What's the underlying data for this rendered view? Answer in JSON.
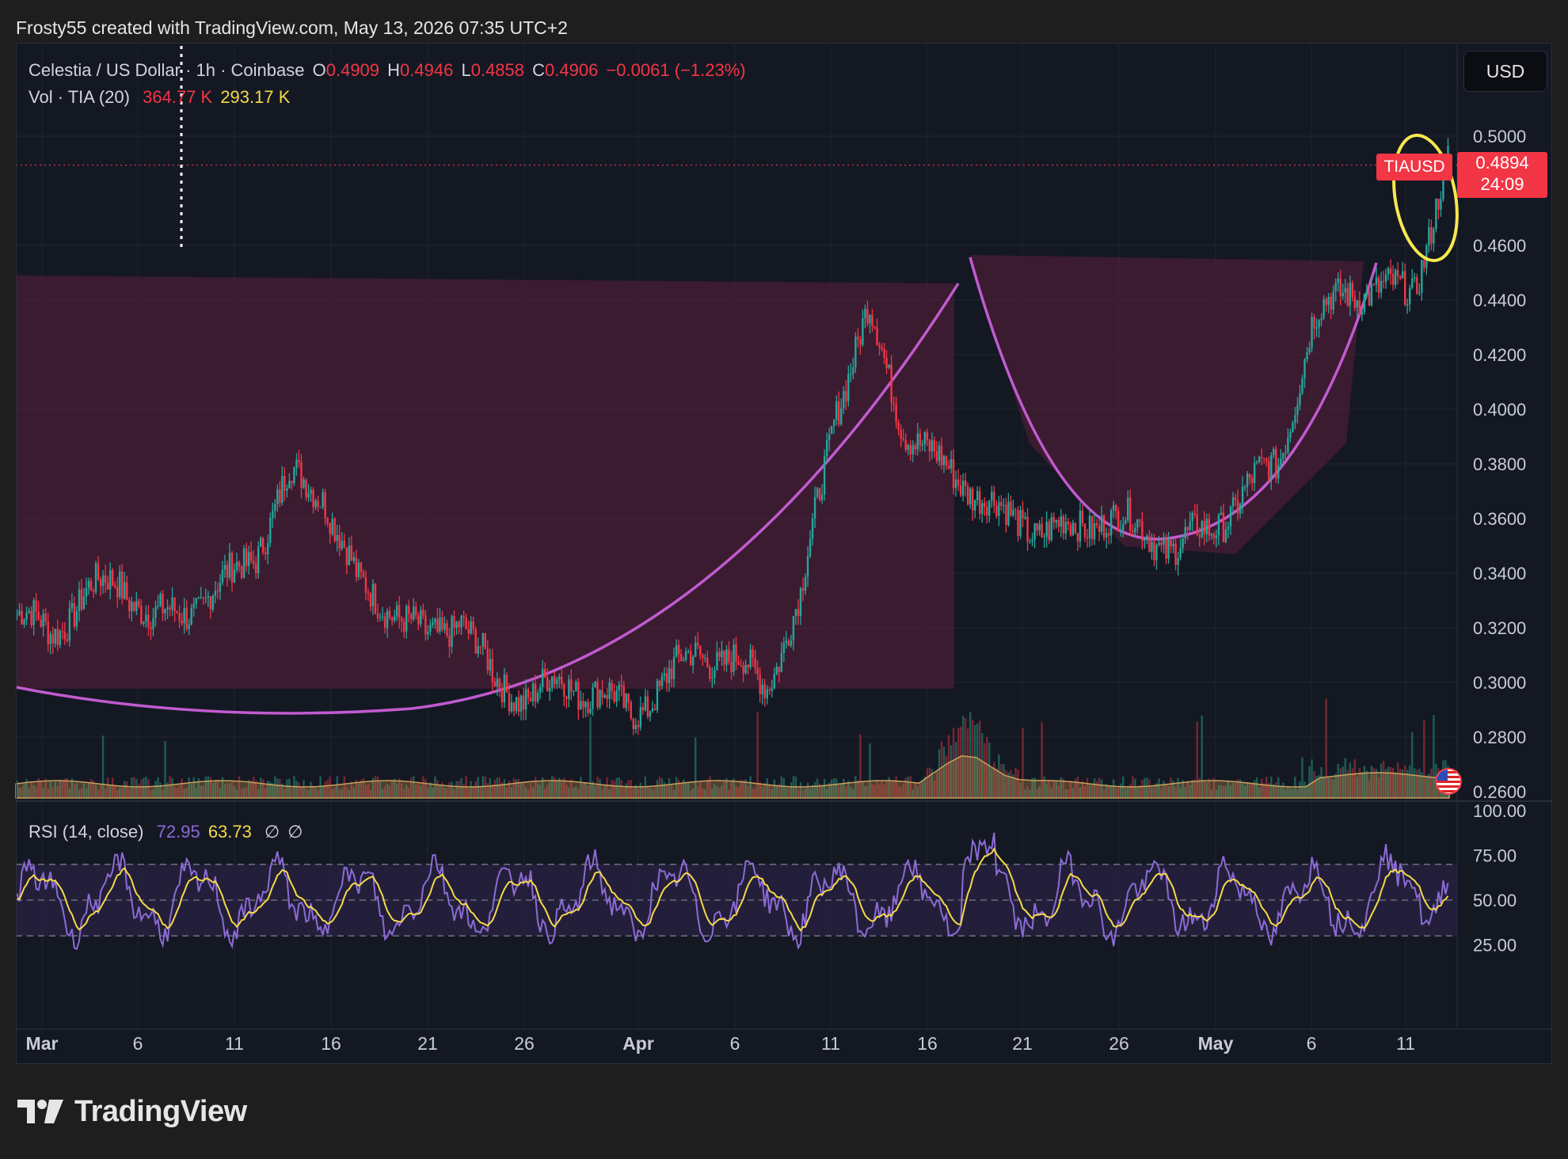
{
  "attribution": "Frosty55 created with TradingView.com, May 13, 2026 07:35 UTC+2",
  "legend": {
    "symbol": "Celestia / US Dollar · 1h · Coinbase",
    "open_label": "O",
    "open": "0.4909",
    "high_label": "H",
    "high": "0.4946",
    "low_label": "L",
    "low": "0.4858",
    "close_label": "C",
    "close": "0.4906",
    "change": "−0.0061 (−1.23%)",
    "vol_label": "Vol · TIA (20)",
    "vol_value": "364.77 K",
    "vol_ma": "293.17 K"
  },
  "rsi_legend": {
    "label": "RSI (14, close)",
    "rsi": "72.95",
    "ma": "63.73",
    "extra1": "∅",
    "extra2": "∅"
  },
  "currency_button": "USD",
  "price_tag": {
    "symbol": "TIAUSD",
    "price": "0.4894",
    "countdown": "24:09"
  },
  "price_axis": [
    "0.5000",
    "0.4600",
    "0.4400",
    "0.4200",
    "0.4000",
    "0.3800",
    "0.3600",
    "0.3400",
    "0.3200",
    "0.3000",
    "0.2800",
    "0.2600"
  ],
  "rsi_axis": [
    "100.00",
    "75.00",
    "50.00",
    "25.00"
  ],
  "time_axis": [
    "Mar",
    "6",
    "11",
    "16",
    "21",
    "26",
    "Apr",
    "6",
    "11",
    "16",
    "21",
    "26",
    "May",
    "6",
    "11"
  ],
  "brand": "TradingView",
  "colors": {
    "up": "#26a69a",
    "down": "#f23645",
    "pattern": "#c15bd0",
    "rsi": "#8c6bd6",
    "rsi_ma": "#f5d94a",
    "highlight": "#f7e84d"
  },
  "chart_data": {
    "type": "line",
    "title": "Celestia / US Dollar · 1h · Coinbase",
    "x": [
      "Mar 1",
      "Mar 3",
      "Mar 5",
      "Mar 7",
      "Mar 9",
      "Mar 11",
      "Mar 13",
      "Mar 15",
      "Mar 16",
      "Mar 18",
      "Mar 20",
      "Mar 22",
      "Mar 24",
      "Mar 26",
      "Mar 28",
      "Mar 30",
      "Apr 1",
      "Apr 3",
      "Apr 5",
      "Apr 7",
      "Apr 9",
      "Apr 11",
      "Apr 13",
      "Apr 15",
      "Apr 16",
      "Apr 17",
      "Apr 18",
      "Apr 19",
      "Apr 21",
      "Apr 23",
      "Apr 25",
      "Apr 27",
      "Apr 29",
      "May 1",
      "May 3",
      "May 5",
      "May 7",
      "May 8",
      "May 9",
      "May 10",
      "May 11",
      "May 12",
      "May 13"
    ],
    "series": [
      {
        "values": [
          0.325,
          0.318,
          0.332,
          0.338,
          0.322,
          0.327,
          0.335,
          0.348,
          0.375,
          0.37,
          0.335,
          0.328,
          0.315,
          0.325,
          0.3,
          0.295,
          0.3,
          0.297,
          0.288,
          0.3,
          0.312,
          0.307,
          0.3,
          0.33,
          0.4,
          0.435,
          0.395,
          0.38,
          0.372,
          0.36,
          0.357,
          0.355,
          0.362,
          0.355,
          0.35,
          0.355,
          0.37,
          0.38,
          0.43,
          0.445,
          0.442,
          0.445,
          0.4894
        ]
      }
    ],
    "ylim": [
      0.26,
      0.5
    ],
    "rsi": {
      "ylim": [
        0,
        100
      ],
      "bands": [
        70,
        50,
        30
      ],
      "last_rsi": 72.95,
      "last_ma": 63.73
    }
  }
}
